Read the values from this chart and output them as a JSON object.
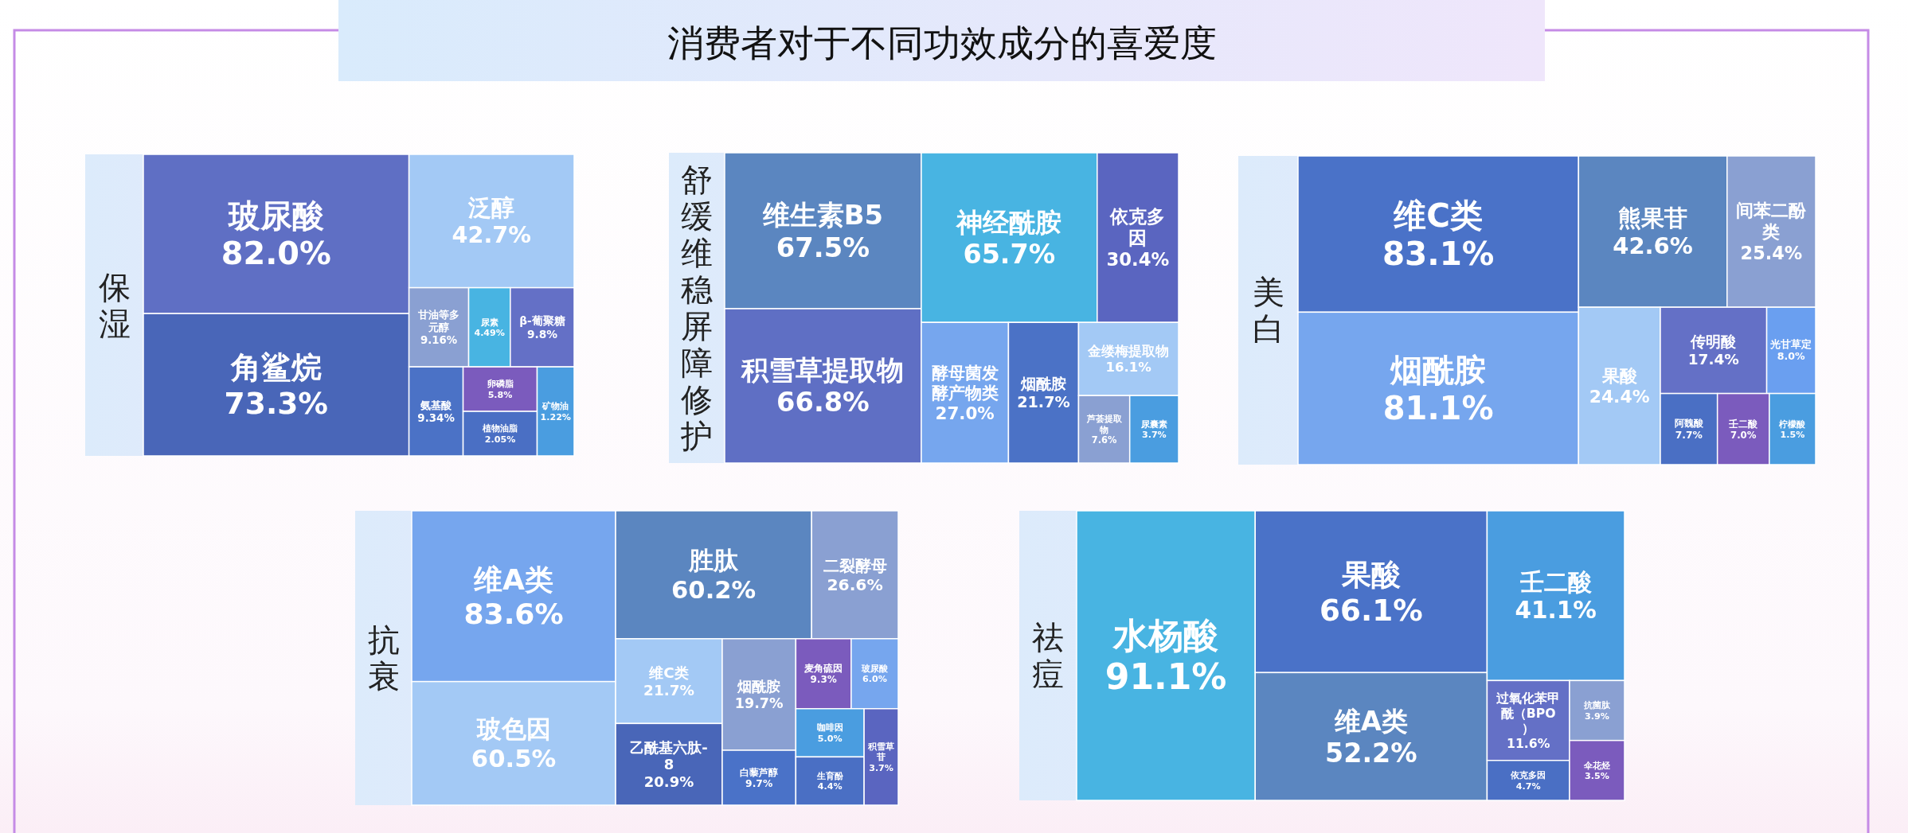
{
  "chart_data": [
    {
      "type": "other",
      "title": "消费者对于不同功效成分的喜爱度"
    },
    {
      "type": "other",
      "ylabel": "保湿",
      "categories": [
        "玻尿酸",
        "角鲨烷",
        "泛醇",
        "甘油等多元醇",
        "尿素",
        "β-葡聚糖",
        "氨基酸",
        "卵磷脂",
        "植物油脂",
        "矿物油"
      ],
      "values": [
        82.0,
        73.3,
        42.7,
        9.16,
        4.49,
        9.8,
        9.34,
        5.8,
        2.05,
        1.22
      ],
      "value_labels": [
        "82.0%",
        "73.3%",
        "42.7%",
        "9.16%",
        "4.49%",
        "9.8%",
        "9.34%",
        "5.8%",
        "2.05%",
        "1.22%"
      ],
      "colors": [
        "#5f6fc4",
        "#4966b8",
        "#a3c9f5",
        "#8aa0d2",
        "#48b4e2",
        "#6470c6",
        "#4b72c6",
        "#7b5bbd",
        "#4a6fc4",
        "#4a9de0"
      ]
    },
    {
      "type": "other",
      "ylabel": "舒缓维稳屏障修护",
      "categories": [
        "维生素B5",
        "积雪草提取物",
        "神经酰胺",
        "依克多因",
        "酵母菌发酵产物类",
        "烟酰胺",
        "金缕梅提取物",
        "芦荟提取物",
        "尿囊素"
      ],
      "values": [
        67.5,
        66.8,
        65.7,
        30.4,
        27.0,
        21.7,
        16.1,
        7.6,
        3.7
      ],
      "value_labels": [
        "67.5%",
        "66.8%",
        "65.7%",
        "30.4%",
        "27.0%",
        "21.7%",
        "16.1%",
        "7.6%",
        "3.7%"
      ],
      "colors": [
        "#5b86c0",
        "#5f6fc4",
        "#48b4e2",
        "#5a65c0",
        "#76a6ee",
        "#4b72c6",
        "#a3c9f5",
        "#8aa0d2",
        "#4a9de0"
      ]
    },
    {
      "type": "other",
      "ylabel": "美白",
      "categories": [
        "维C类",
        "烟酰胺",
        "熊果苷",
        "间苯二酚类",
        "果酸",
        "传明酸",
        "光甘草定",
        "阿魏酸",
        "壬二酸",
        "柠檬酸"
      ],
      "values": [
        83.1,
        81.1,
        42.6,
        25.4,
        24.4,
        17.4,
        8.0,
        7.7,
        7.0,
        1.5
      ],
      "value_labels": [
        "83.1%",
        "81.1%",
        "42.6%",
        "25.4%",
        "24.4%",
        "17.4%",
        "8.0%",
        "7.7%",
        "7.0%",
        "1.5%"
      ],
      "colors": [
        "#4a72c8",
        "#76a6ee",
        "#5b86c0",
        "#8aa0d2",
        "#a3c9f5",
        "#6470c6",
        "#6a9ff0",
        "#4a6fc4",
        "#7b5bbd",
        "#4a9de0"
      ]
    },
    {
      "type": "other",
      "ylabel": "抗衰",
      "categories": [
        "维A类",
        "玻色因",
        "胜肽",
        "二裂酵母",
        "维C类",
        "乙酰基六肽-8",
        "烟酰胺",
        "白藜芦醇",
        "麦角硫因",
        "玻尿酸",
        "咖啡因",
        "生育酚",
        "积雪草苷"
      ],
      "values": [
        83.6,
        60.5,
        60.2,
        26.6,
        21.7,
        20.9,
        19.7,
        9.7,
        9.3,
        6.0,
        5.0,
        4.4,
        3.7
      ],
      "value_labels": [
        "83.6%",
        "60.5%",
        "60.2%",
        "26.6%",
        "21.7%",
        "20.9%",
        "19.7%",
        "9.7%",
        "9.3%",
        "6.0%",
        "5.0%",
        "4.4%",
        "3.7%"
      ],
      "colors": [
        "#76a6ee",
        "#a3c9f5",
        "#5b86c0",
        "#8aa0d2",
        "#a3c9f5",
        "#4966b8",
        "#8aa0d2",
        "#4a72c8",
        "#7b5bbd",
        "#76a6ee",
        "#4a9de0",
        "#4a6fc4",
        "#5a65c0"
      ]
    },
    {
      "type": "other",
      "ylabel": "祛痘",
      "categories": [
        "水杨酸",
        "果酸",
        "维A类",
        "壬二酸",
        "过氧化苯甲酰（BPO）",
        "依克多因",
        "抗菌肽",
        "伞花烃"
      ],
      "values": [
        91.1,
        66.1,
        52.2,
        41.1,
        11.6,
        4.7,
        3.9,
        3.5
      ],
      "value_labels": [
        "91.1%",
        "66.1%",
        "52.2%",
        "41.1%",
        "11.6%",
        "4.7%",
        "3.9%",
        "3.5%"
      ],
      "colors": [
        "#48b4e2",
        "#4a72c8",
        "#5b86c0",
        "#4a9de0",
        "#6470c6",
        "#4a6fc4",
        "#8aa0d2",
        "#7b5bbd"
      ]
    }
  ]
}
